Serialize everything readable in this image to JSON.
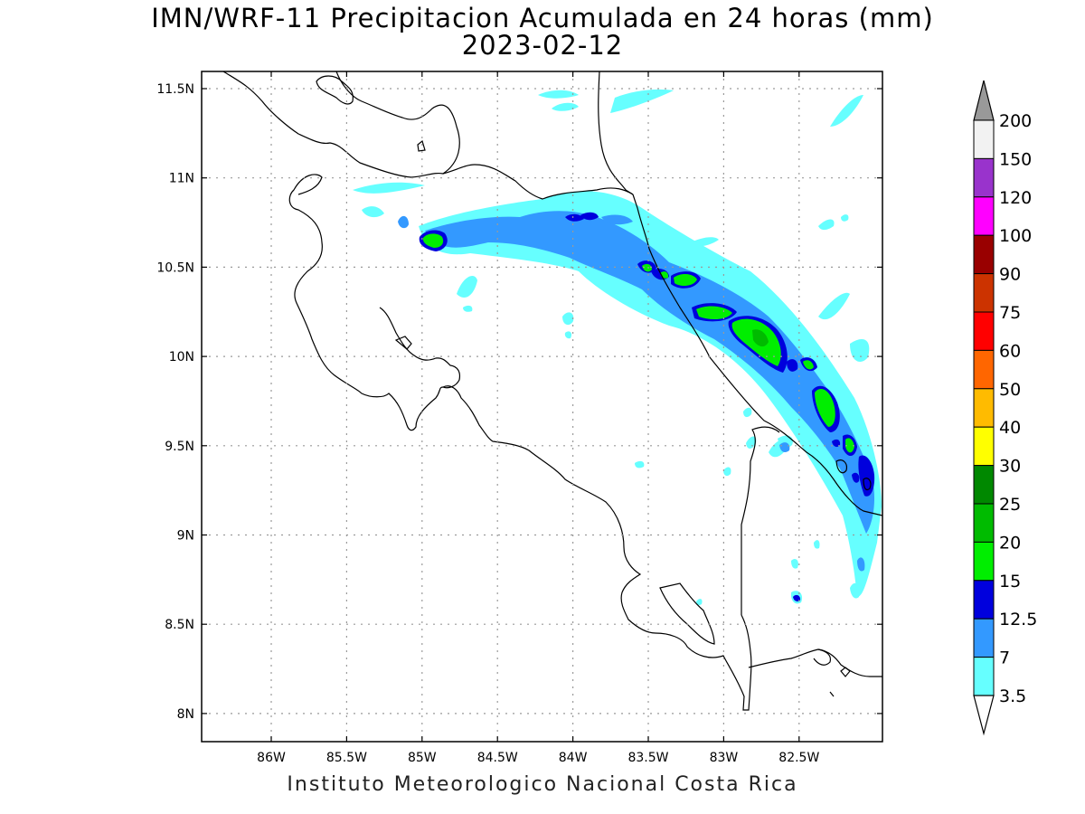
{
  "title": "IMN/WRF-11 Precipitacion Acumulada en 24 horas (mm)",
  "date": "2023-02-12",
  "credit": "Instituto Meteorologico Nacional Costa Rica",
  "map": {
    "lon_labels": [
      "86W",
      "85.5W",
      "85W",
      "84.5W",
      "84W",
      "83.5W",
      "83W",
      "82.5W"
    ],
    "lat_labels": [
      "11.5N",
      "11N",
      "10.5N",
      "10N",
      "9.5N",
      "9N",
      "8.5N",
      "8N"
    ]
  },
  "colorbar": {
    "labels": [
      "200",
      "150",
      "120",
      "100",
      "90",
      "75",
      "60",
      "50",
      "40",
      "30",
      "25",
      "20",
      "15",
      "12.5",
      "7",
      "3.5"
    ],
    "colors": [
      "#f2f2f2",
      "#9933cc",
      "#ff00ff",
      "#990000",
      "#cc3300",
      "#ff0000",
      "#ff6600",
      "#ffbb00",
      "#ffff00",
      "#008800",
      "#00bb00",
      "#00ee00",
      "#0000dd",
      "#3399ff",
      "#66ffff"
    ],
    "top_arrow_color": "#999999",
    "bottom_arrow_color": "#ffffff"
  },
  "palette": {
    "light_cyan": "#66ffff",
    "mid_blue": "#3399ff",
    "dark_blue": "#0000dd",
    "green": "#00ee00",
    "mid_green": "#00bb00"
  }
}
